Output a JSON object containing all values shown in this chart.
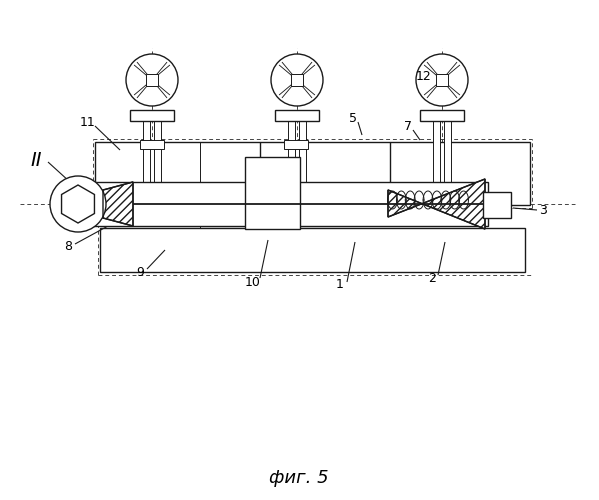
{
  "title": "фиг. 5",
  "bg_color": "#ffffff",
  "line_color": "#1a1a1a",
  "fig_width": 5.99,
  "fig_height": 5.0,
  "dpi": 100
}
